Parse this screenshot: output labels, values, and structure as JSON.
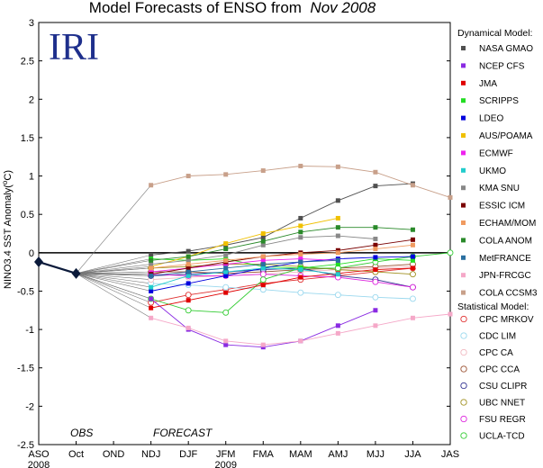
{
  "chart_data": {
    "type": "line",
    "title": "Model Forecasts of ENSO from",
    "title_date": "Nov 2008",
    "ylabel": "NINO3.4 SST Anomaly(",
    "ylabel_unit": "o",
    "ylabel_tail": "C)",
    "logo": "IRI",
    "obs_label": "OBS",
    "forecast_label": "FORECAST",
    "year_labels": [
      {
        "text": "2008",
        "at": "ASO"
      },
      {
        "text": "2009",
        "at": "JFM"
      }
    ],
    "categories": [
      "ASO",
      "Oct",
      "OND",
      "NDJ",
      "DJF",
      "JFM",
      "FMA",
      "MAM",
      "AMJ",
      "MJJ",
      "JJA",
      "JAS"
    ],
    "ylim": [
      -2.5,
      3
    ],
    "yticks": [
      -2.5,
      -2,
      -1.5,
      -1,
      -0.5,
      0,
      0.5,
      1,
      1.5,
      2,
      2.5,
      3
    ],
    "zero_line": true,
    "grid": false,
    "observed": {
      "x": [
        "ASO",
        "Oct"
      ],
      "values": [
        -0.12,
        -0.27
      ],
      "color": "#0b1a3a"
    },
    "legend_dynamical_title": "Dynamical Model:",
    "legend_statistical_title": "Statistical Model:",
    "legend_position": "right",
    "dynamical": [
      {
        "name": "NASA GMAO",
        "color": "#505050",
        "values": [
          -0.03,
          0.02,
          0.1,
          0.2,
          0.45,
          0.68,
          0.87,
          0.9
        ]
      },
      {
        "name": "NCEP CFS",
        "color": "#8a2be2",
        "values": [
          -0.6,
          -1.0,
          -1.2,
          -1.23,
          -1.15,
          -0.95,
          -0.75,
          null
        ]
      },
      {
        "name": "JMA",
        "color": "#e00000",
        "values": [
          -0.72,
          -0.62,
          -0.52,
          -0.42,
          -0.32,
          -0.27,
          -0.22,
          -0.2
        ]
      },
      {
        "name": "SCRIPPS",
        "color": "#22dd22",
        "values": [
          -0.08,
          -0.1,
          -0.08,
          -0.18,
          -0.2,
          -0.15,
          -0.08,
          -0.1
        ]
      },
      {
        "name": "LDEO",
        "color": "#0000dd",
        "values": [
          -0.5,
          -0.4,
          -0.3,
          -0.2,
          -0.12,
          -0.08,
          -0.06,
          -0.05
        ]
      },
      {
        "name": "AUS/POAMA",
        "color": "#f0c000",
        "values": [
          -0.18,
          -0.05,
          0.12,
          0.25,
          0.35,
          0.45,
          null,
          null
        ]
      },
      {
        "name": "ECMWF",
        "color": "#ee22ee",
        "values": [
          -0.25,
          -0.2,
          -0.15,
          -0.1,
          -0.08,
          -0.1,
          null,
          null
        ]
      },
      {
        "name": "UKMO",
        "color": "#22cccc",
        "values": [
          -0.45,
          -0.3,
          -0.25,
          -0.2,
          -0.22,
          -0.28,
          null,
          null
        ]
      },
      {
        "name": "KMA SNU",
        "color": "#888888",
        "values": [
          -0.15,
          -0.1,
          -0.03,
          0.1,
          0.2,
          0.22,
          0.18,
          null
        ]
      },
      {
        "name": "ESSIC ICM",
        "color": "#7a0000",
        "values": [
          -0.28,
          -0.2,
          -0.12,
          -0.05,
          0.0,
          0.03,
          0.1,
          0.17
        ]
      },
      {
        "name": "ECHAM/MOM",
        "color": "#f09a60",
        "values": [
          -0.2,
          -0.15,
          -0.1,
          -0.05,
          -0.02,
          0.0,
          0.05,
          0.1
        ]
      },
      {
        "name": "COLA ANOM",
        "color": "#2a8a2a",
        "values": [
          -0.1,
          -0.05,
          0.05,
          0.15,
          0.27,
          0.33,
          0.33,
          0.3
        ]
      },
      {
        "name": "MetFRANCE",
        "color": "#2a6fa0",
        "values": [
          -0.3,
          -0.25,
          -0.2,
          -0.15,
          -0.12,
          -0.1,
          null,
          null
        ]
      },
      {
        "name": "JPN-FRCGC",
        "color": "#f5a8c8",
        "values": [
          -0.85,
          -0.98,
          -1.15,
          -1.2,
          -1.15,
          -1.05,
          -0.95,
          -0.85,
          -0.8
        ]
      },
      {
        "name": "COLA CCSM3",
        "color": "#c8a08a",
        "values": [
          0.88,
          1.0,
          1.02,
          1.07,
          1.13,
          1.12,
          1.05,
          0.88,
          0.72
        ]
      }
    ],
    "statistical": [
      {
        "name": "CPC MRKOV",
        "color": "#e03030",
        "values": [
          -0.65,
          -0.55,
          -0.48,
          -0.4,
          -0.35,
          -0.3,
          -0.25,
          -0.2
        ]
      },
      {
        "name": "CDC LIM",
        "color": "#9ad8ee",
        "values": [
          -0.4,
          -0.42,
          -0.45,
          -0.48,
          -0.52,
          -0.55,
          -0.58,
          -0.6
        ]
      },
      {
        "name": "CPC CA",
        "color": "#f0b8c0",
        "values": [
          -0.35,
          -0.32,
          -0.3,
          -0.28,
          -0.25,
          -0.22,
          -0.2,
          -0.18
        ]
      },
      {
        "name": "CPC CCA",
        "color": "#9a5030",
        "values": [
          -0.25,
          -0.25,
          -0.27,
          -0.25,
          -0.22,
          -0.2,
          -0.18,
          -0.15
        ]
      },
      {
        "name": "CSU CLIPR",
        "color": "#303090",
        "values": [
          -0.3,
          -0.28,
          -0.25,
          -0.22,
          -0.2,
          -0.3,
          -0.35,
          -0.45
        ]
      },
      {
        "name": "UBC NNET",
        "color": "#a09020",
        "values": [
          -0.2,
          -0.18,
          -0.15,
          -0.15,
          -0.18,
          -0.22,
          -0.25,
          -0.28
        ]
      },
      {
        "name": "FSU REGR",
        "color": "#dd22dd",
        "values": [
          -0.28,
          -0.3,
          -0.3,
          -0.28,
          -0.3,
          -0.32,
          -0.38,
          -0.45
        ]
      },
      {
        "name": "UCLA-TCD",
        "color": "#33cc33",
        "values": [
          -0.6,
          -0.75,
          -0.78,
          -0.35,
          -0.2,
          -0.2,
          -0.12,
          -0.05,
          0.0
        ]
      }
    ]
  }
}
